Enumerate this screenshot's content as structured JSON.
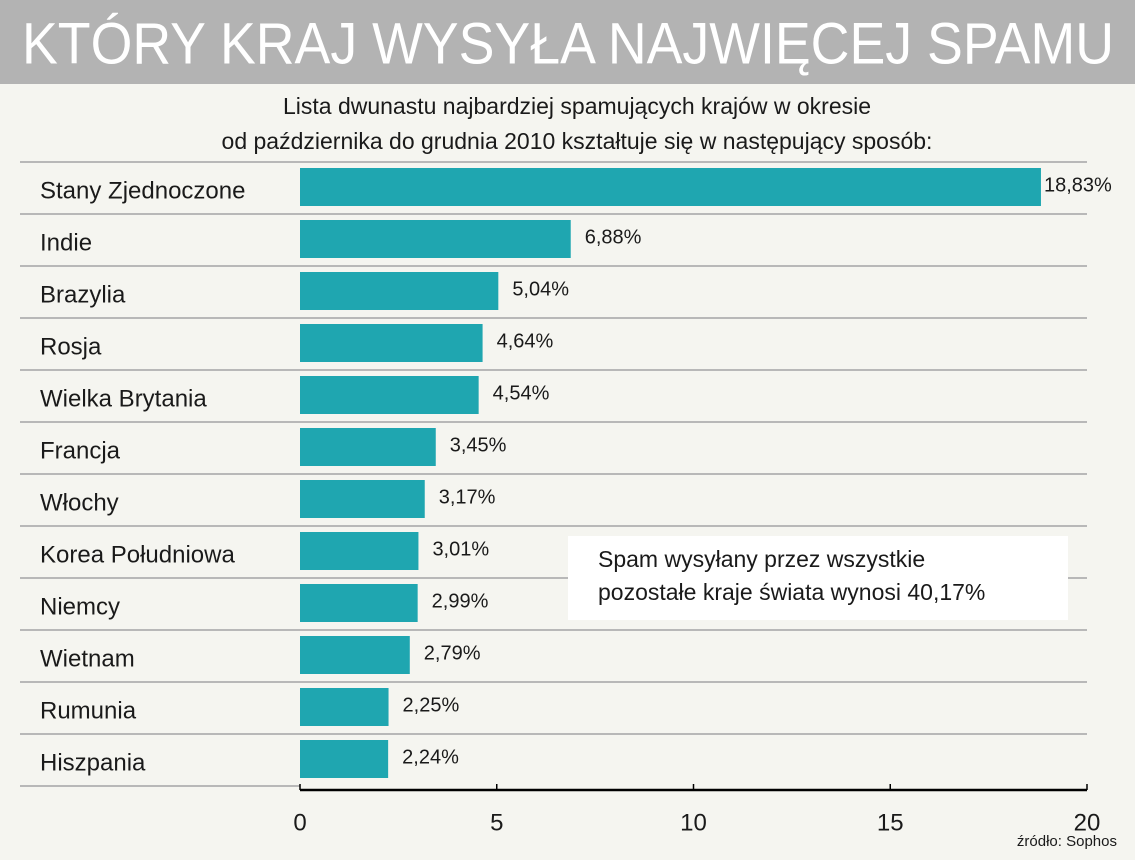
{
  "chart_data": {
    "type": "bar",
    "orientation": "horizontal",
    "title": "KTÓRY KRAJ WYSYŁA NAJWIĘCEJ SPAMU",
    "subtitle": [
      "Lista dwunastu najbardziej spamujących krajów w okresie",
      "od października do grudnia 2010 kształtuje się w następujący sposób:"
    ],
    "categories": [
      "Stany Zjednoczone",
      "Indie",
      "Brazylia",
      "Rosja",
      "Wielka Brytania",
      "Francja",
      "Włochy",
      "Korea Południowa",
      "Niemcy",
      "Wietnam",
      "Rumunia",
      "Hiszpania"
    ],
    "values": [
      18.83,
      6.88,
      5.04,
      4.64,
      4.54,
      3.45,
      3.17,
      3.01,
      2.99,
      2.79,
      2.25,
      2.24
    ],
    "value_labels": [
      "18,83%",
      "6,88%",
      "5,04%",
      "4,64%",
      "4,54%",
      "3,45%",
      "3,17%",
      "3,01%",
      "2,99%",
      "2,79%",
      "2,25%",
      "2,24%"
    ],
    "color": "#1fa6b0",
    "xlim": [
      0,
      20
    ],
    "xticks": [
      0,
      5,
      10,
      15,
      20
    ],
    "annotation": [
      "Spam wysyłany przez wszystkie",
      "pozostałe kraje świata wynosi 40,17%"
    ],
    "source": "źródło: Sophos"
  }
}
